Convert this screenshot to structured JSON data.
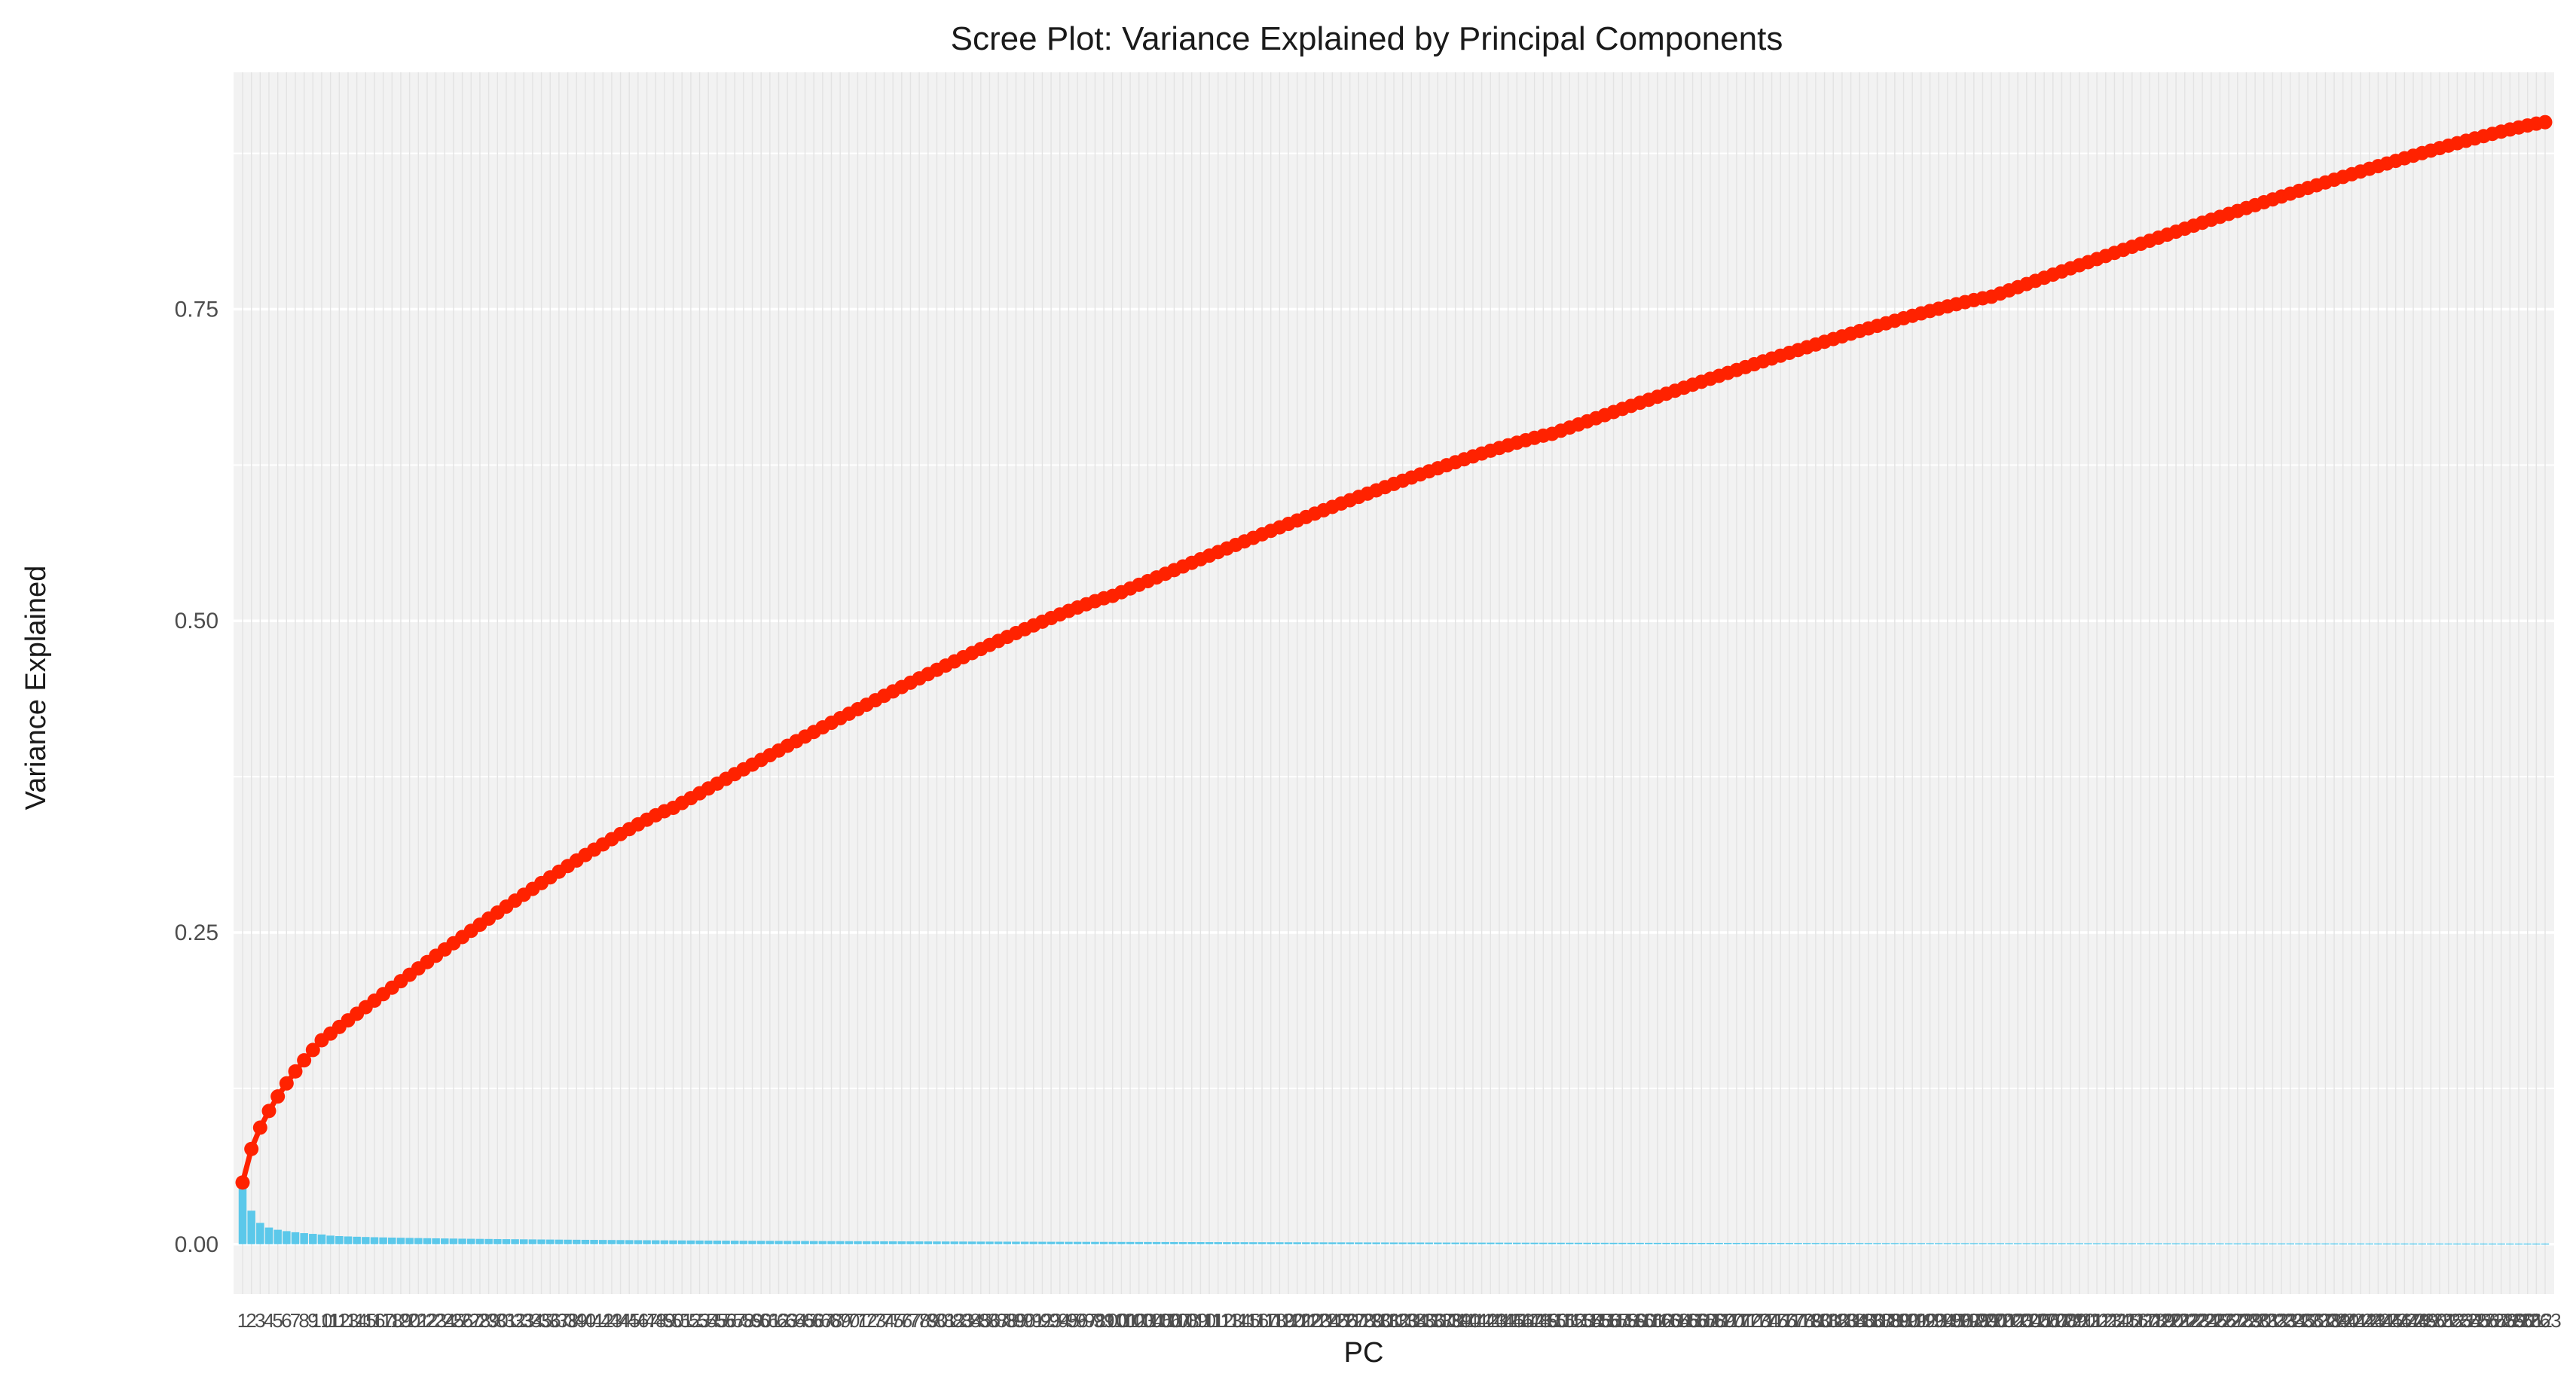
{
  "chart_data": {
    "type": "bar",
    "title": "Scree Plot: Variance Explained by Principal Components",
    "xlabel": "PC",
    "ylabel": "Variance Explained",
    "n_components": 263,
    "y_ticks": [
      0.0,
      0.25,
      0.5,
      0.75
    ],
    "y_tick_labels": [
      "0.00",
      "0.25",
      "0.50",
      "0.75"
    ],
    "ylim": [
      -0.04,
      0.94
    ],
    "grid": true,
    "legend": "none",
    "series": [
      {
        "type": "bar",
        "color": "#5bc8ea",
        "first_values": [
          0.0495,
          0.0269,
          0.0171,
          0.0134,
          0.0116,
          0.0105,
          0.0096,
          0.0089,
          0.0083,
          0.0078
        ],
        "last_value": 0.0006
      },
      {
        "type": "line+points",
        "color": "#ff2200",
        "first_values": [
          0.0495,
          0.0764,
          0.0935,
          0.1069,
          0.1185,
          0.129,
          0.1386,
          0.1475,
          0.1558,
          0.1636
        ],
        "checkpoints": [
          {
            "pc": 50,
            "value": 0.35
          },
          {
            "pc": 100,
            "value": 0.52
          },
          {
            "pc": 150,
            "value": 0.65
          },
          {
            "pc": 200,
            "value": 0.76
          },
          {
            "pc": 263,
            "value": 0.9
          }
        ]
      }
    ]
  },
  "colors": {
    "panel_background": "#f2f2f2",
    "major_grid": "#ebebeb",
    "minor_grid": "#ffffff",
    "bar_fill": "#5bc8ea",
    "cumulative_line": "#ff2200"
  }
}
